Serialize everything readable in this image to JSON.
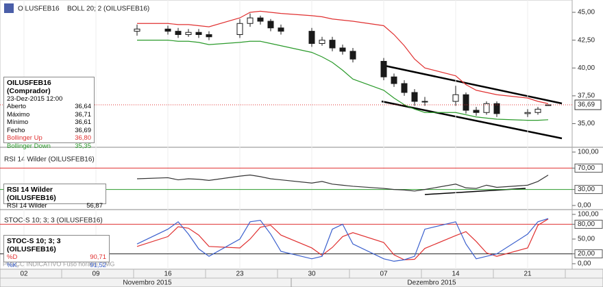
{
  "header": {
    "symbol": "OILUSFEB16",
    "footer_left": "PREÇO INDICATIVO",
    "footer_tz": "Fuso horário: TMG"
  },
  "x_axis": {
    "ticks": [
      {
        "value": "2015-11-02",
        "label": "02"
      },
      {
        "value": "2015-11-09",
        "label": "09"
      },
      {
        "value": "2015-11-16",
        "label": "16"
      },
      {
        "value": "2015-11-23",
        "label": "23"
      },
      {
        "value": "2015-11-30",
        "label": "30"
      },
      {
        "value": "2015-12-07",
        "label": "07"
      },
      {
        "value": "2015-12-14",
        "label": "14"
      },
      {
        "value": "2015-12-21",
        "label": "21"
      }
    ],
    "months": [
      "Novembro 2015",
      "Dezembro 2015"
    ]
  },
  "chart_data": [
    {
      "type": "candlestick",
      "title": "BOLL 20; 2 (OILUSFEB16)",
      "color": "#1a1a1a",
      "x": [
        "2015-11-13",
        "2015-11-16",
        "2015-11-17",
        "2015-11-18",
        "2015-11-19",
        "2015-11-20",
        "2015-11-23",
        "2015-11-24",
        "2015-11-25",
        "2015-11-26",
        "2015-11-27",
        "2015-11-30",
        "2015-12-01",
        "2015-12-02",
        "2015-12-03",
        "2015-12-04",
        "2015-12-07",
        "2015-12-08",
        "2015-12-09",
        "2015-12-10",
        "2015-12-11",
        "2015-12-14",
        "2015-12-15",
        "2015-12-16",
        "2015-12-17",
        "2015-12-18",
        "2015-12-21",
        "2015-12-22",
        "2015-12-23"
      ],
      "open": [
        43.3,
        43.5,
        43.3,
        43.0,
        43.2,
        43.0,
        43.0,
        44.0,
        44.5,
        44.2,
        43.6,
        43.3,
        42.2,
        42.5,
        41.8,
        41.5,
        40.6,
        39.2,
        38.6,
        37.8,
        37.0,
        37.0,
        37.6,
        36.2,
        36.0,
        36.8,
        35.9,
        36.0,
        36.64
      ],
      "high": [
        43.9,
        43.8,
        43.6,
        43.5,
        43.5,
        43.3,
        44.4,
        44.9,
        44.7,
        44.4,
        43.9,
        43.6,
        42.8,
        42.8,
        42.1,
        41.8,
        40.9,
        39.5,
        38.9,
        38.1,
        37.4,
        38.4,
        37.8,
        36.5,
        37.0,
        37.0,
        36.3,
        36.5,
        36.71
      ],
      "low": [
        42.9,
        43.0,
        42.7,
        42.8,
        42.7,
        42.5,
        42.7,
        43.7,
        43.9,
        43.3,
        43.0,
        41.9,
        42.0,
        41.5,
        41.2,
        40.5,
        38.9,
        38.3,
        37.5,
        36.6,
        36.6,
        36.6,
        35.9,
        35.7,
        35.8,
        35.6,
        35.6,
        35.8,
        36.61
      ],
      "close": [
        43.5,
        43.3,
        43.0,
        43.2,
        43.0,
        42.8,
        44.0,
        44.5,
        44.2,
        43.6,
        43.3,
        42.2,
        42.5,
        41.8,
        41.5,
        40.8,
        39.2,
        38.6,
        37.8,
        37.0,
        37.0,
        37.6,
        36.2,
        36.0,
        36.8,
        35.9,
        36.0,
        36.3,
        36.69
      ],
      "series": [
        {
          "name": "Bollinger Up",
          "color": "#e03030",
          "last_label": "36,80",
          "values": [
            44.0,
            44.0,
            43.9,
            43.9,
            43.8,
            43.7,
            44.5,
            45.0,
            45.1,
            45.0,
            44.9,
            44.7,
            44.6,
            44.4,
            44.3,
            44.2,
            43.8,
            43.0,
            42.0,
            40.8,
            40.0,
            39.3,
            38.5,
            38.0,
            37.8,
            37.6,
            37.3,
            37.0,
            36.8
          ]
        },
        {
          "name": "Bollinger Down",
          "color": "#2a9a2a",
          "last_label": "35,35",
          "values": [
            42.5,
            42.5,
            42.4,
            42.4,
            42.3,
            42.1,
            42.3,
            42.4,
            42.4,
            42.2,
            42.0,
            41.4,
            41.0,
            40.5,
            39.8,
            39.0,
            38.0,
            37.3,
            36.7,
            36.3,
            36.0,
            36.0,
            35.8,
            35.6,
            35.5,
            35.4,
            35.3,
            35.3,
            35.35
          ]
        }
      ],
      "ylim": [
        33.0,
        45.8
      ],
      "yticks": [
        {
          "value": 35,
          "label": "35,00"
        },
        {
          "value": 37.5,
          "label": "37,50"
        },
        {
          "value": 40,
          "label": "40,00"
        },
        {
          "value": 42.5,
          "label": "42,50"
        },
        {
          "value": 45,
          "label": "45,00"
        }
      ],
      "last": {
        "value": 36.69,
        "label": "36,69"
      },
      "info": {
        "title": "OILUSFEB16 (Comprador)",
        "date": "23-Dez-2015 12:00",
        "rows": [
          {
            "label": "Aberto",
            "value": "36,64"
          },
          {
            "label": "Máximo",
            "value": "36,71"
          },
          {
            "label": "Mínimo",
            "value": "36,61"
          },
          {
            "label": "Fecho",
            "value": "36,69"
          }
        ]
      }
    },
    {
      "type": "line",
      "title": "RSI 14 Wilder (OILUSFEB16)",
      "box_title": "RSI 14 Wilder (OILUSFEB16)",
      "series": [
        {
          "name": "RSI 14 Wilder",
          "color": "#333333",
          "last_label": "56,87",
          "values": [
            50,
            52,
            48,
            50,
            49,
            47,
            55,
            57,
            54,
            50,
            48,
            42,
            45,
            40,
            38,
            36,
            32,
            30,
            29,
            27,
            30,
            40,
            33,
            32,
            38,
            34,
            38,
            45,
            56.87
          ]
        }
      ],
      "ylim": [
        0,
        100
      ],
      "yticks": [
        {
          "value": 0,
          "label": "0,00"
        },
        {
          "value": 30,
          "label": "30,00"
        },
        {
          "value": 70,
          "label": "70,00"
        },
        {
          "value": 100,
          "label": "100,00"
        }
      ],
      "levels": [
        {
          "value": 70,
          "color": "#e03030"
        },
        {
          "value": 30,
          "color": "#2a9a2a"
        }
      ]
    },
    {
      "type": "line",
      "title": "STOC-S 10; 3; 3 (OILUSFEB16)",
      "box_title": "STOC-S 10; 3; 3 (OILUSFEB16)",
      "series": [
        {
          "name": "%D",
          "color": "#e03030",
          "last_label": "90,71",
          "values": [
            35,
            55,
            75,
            72,
            58,
            35,
            32,
            50,
            74,
            78,
            58,
            32,
            17,
            33,
            55,
            63,
            43,
            18,
            8,
            9,
            31,
            57,
            65,
            45,
            22,
            15,
            32,
            78,
            90.71
          ]
        },
        {
          "name": "%K",
          "color": "#3a5fcd",
          "last_label": "91,52",
          "values": [
            40,
            70,
            85,
            60,
            30,
            15,
            50,
            85,
            88,
            60,
            25,
            10,
            15,
            70,
            80,
            40,
            10,
            5,
            8,
            15,
            70,
            85,
            40,
            10,
            15,
            20,
            60,
            85,
            91.52
          ]
        }
      ],
      "ylim": [
        0,
        100
      ],
      "yticks": [
        {
          "value": 0,
          "label": "0,00"
        },
        {
          "value": 20,
          "label": "20,00"
        },
        {
          "value": 50,
          "label": "50,00"
        },
        {
          "value": 80,
          "label": "80,00"
        },
        {
          "value": 100,
          "label": "100,00"
        }
      ],
      "levels": [
        {
          "value": 80,
          "color": "#e03030"
        },
        {
          "value": 20,
          "color": "#222222"
        }
      ]
    }
  ]
}
